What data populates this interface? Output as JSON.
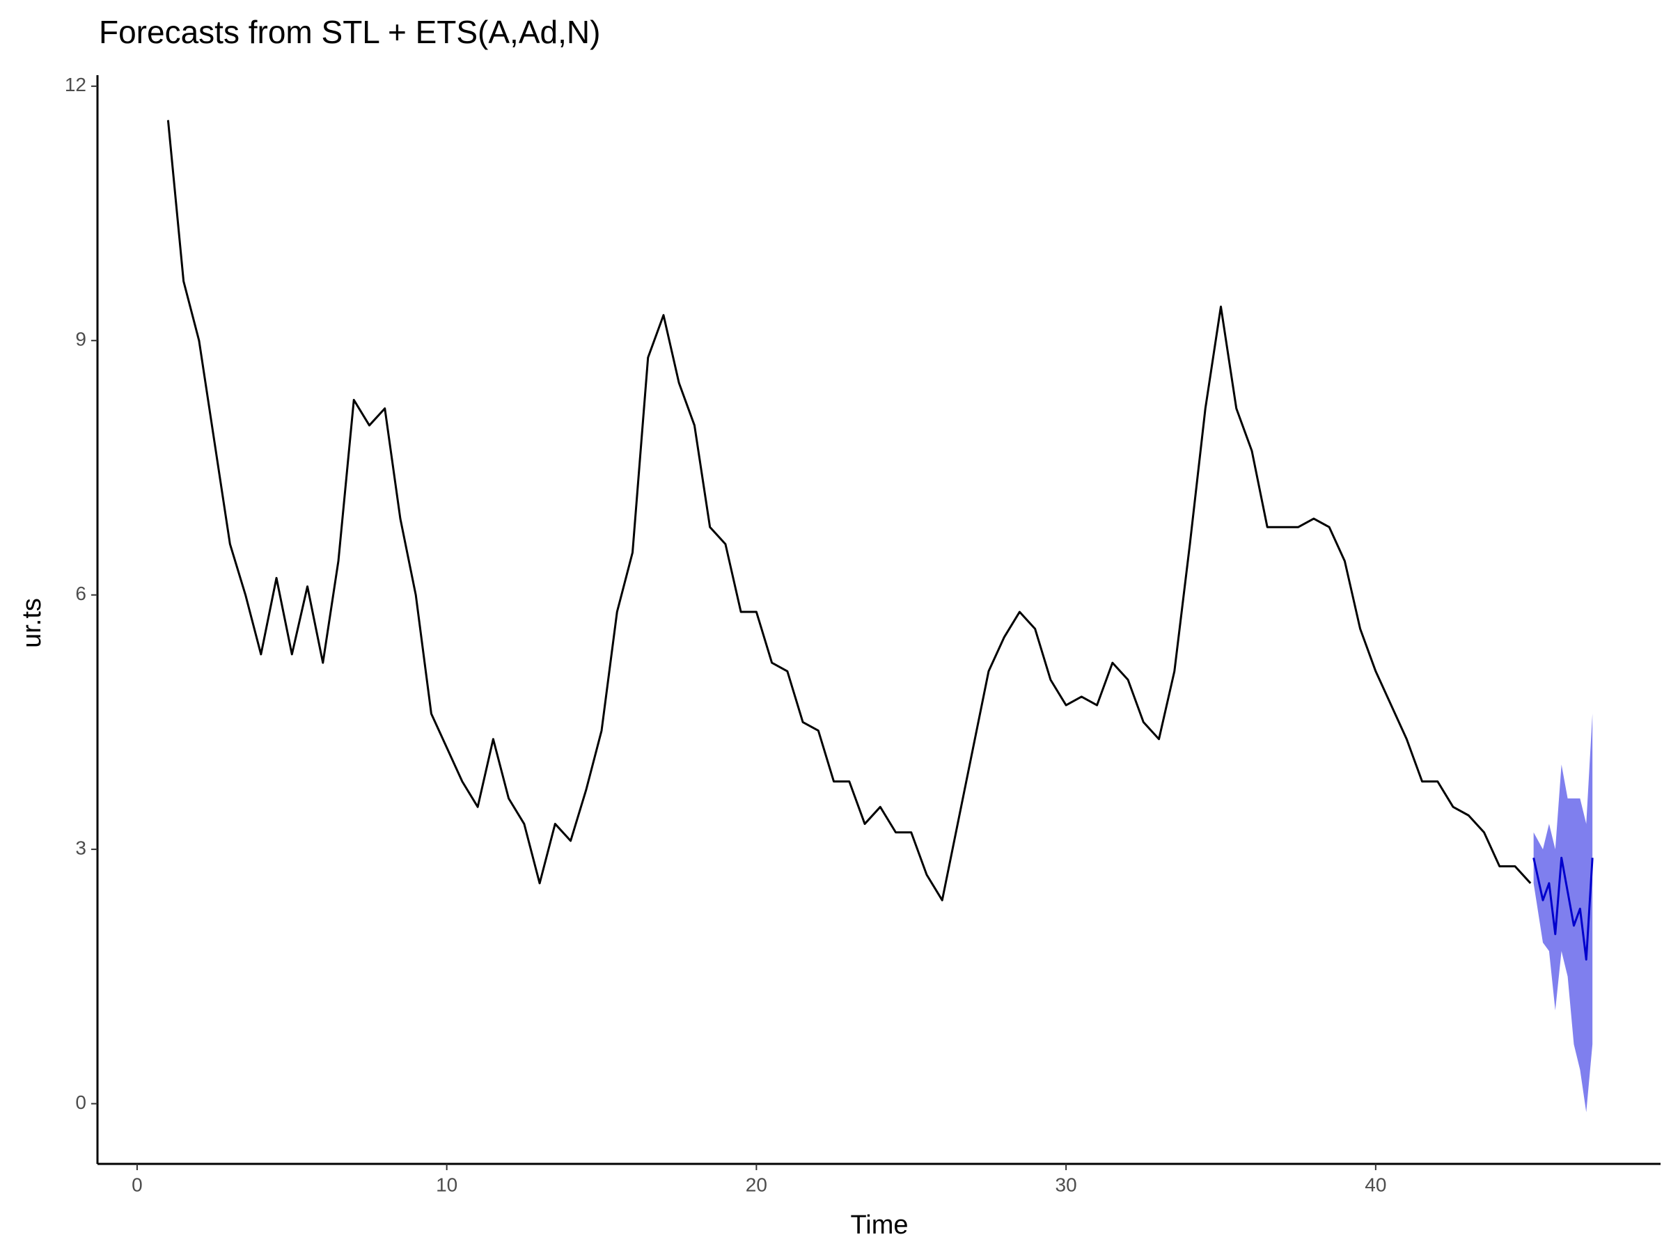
{
  "chart_data": {
    "type": "line",
    "title": "Forecasts from STL +  ETS(A,Ad,N)",
    "x_label": "Time",
    "y_label": "ur.ts",
    "xlim": [
      -1.28,
      49.2
    ],
    "ylim": [
      -0.71,
      12.13
    ],
    "xticks": [
      0,
      10,
      20,
      30,
      40
    ],
    "yticks": [
      0,
      3,
      6,
      9,
      12
    ],
    "grid": false,
    "series": [
      {
        "color": "#000000",
        "x": [
          1,
          1.5,
          2,
          2.5,
          3,
          3.5,
          4,
          4.5,
          5,
          5.5,
          6,
          6.5,
          7,
          7.5,
          8,
          8.5,
          9,
          9.5,
          10,
          10.5,
          11,
          11.5,
          12,
          12.5,
          13,
          13.5,
          14,
          14.5,
          15,
          15.5,
          16,
          16.5,
          17,
          17.5,
          18,
          18.5,
          19,
          19.5,
          20,
          20.5,
          21,
          21.5,
          22,
          22.5,
          23,
          23.5,
          24,
          24.5,
          25,
          25.5,
          26,
          26.5,
          27,
          27.5,
          28,
          28.5,
          29,
          29.5,
          30,
          30.5,
          31,
          31.5,
          32,
          32.5,
          33,
          33.5,
          34,
          34.5,
          35,
          35.5,
          36,
          36.5,
          37,
          37.5,
          38,
          38.5,
          39,
          39.5,
          40,
          40.5,
          41,
          41.5,
          42,
          42.5,
          43,
          43.5,
          44,
          44.5,
          45
        ],
        "values": [
          11.6,
          9.7,
          9.0,
          7.8,
          6.6,
          6.0,
          5.3,
          6.2,
          5.3,
          6.1,
          5.2,
          6.4,
          8.3,
          8.0,
          8.2,
          6.9,
          6.0,
          4.6,
          4.2,
          3.8,
          3.5,
          4.3,
          3.6,
          3.3,
          2.6,
          3.3,
          3.1,
          3.7,
          4.4,
          5.8,
          6.5,
          8.8,
          9.3,
          8.5,
          8.0,
          6.8,
          6.6,
          5.8,
          5.8,
          5.2,
          5.1,
          4.5,
          4.4,
          3.8,
          3.8,
          3.3,
          3.5,
          3.2,
          3.2,
          2.7,
          2.4,
          3.3,
          4.2,
          5.1,
          5.5,
          5.8,
          5.6,
          5.0,
          4.7,
          4.8,
          4.7,
          5.2,
          5.0,
          4.5,
          4.3,
          5.1,
          6.6,
          8.2,
          9.4,
          8.2,
          7.7,
          6.8,
          6.8,
          6.8,
          6.9,
          6.8,
          6.4,
          5.6,
          5.1,
          4.7,
          4.3,
          3.8,
          3.8,
          3.5,
          3.4,
          3.2,
          2.8,
          2.8,
          2.6
        ]
      },
      {
        "color": "#0000cd",
        "band_color": "#7f7fee",
        "x": [
          45.1,
          45.4,
          45.6,
          45.8,
          46,
          46.2,
          46.4,
          46.6,
          46.8,
          47
        ],
        "values": [
          2.9,
          2.4,
          2.6,
          2.0,
          2.9,
          2.5,
          2.1,
          2.3,
          1.7,
          2.9
        ],
        "lower": [
          2.6,
          1.9,
          1.8,
          1.1,
          1.8,
          1.5,
          0.7,
          0.4,
          -0.1,
          0.7
        ],
        "upper": [
          3.2,
          3.0,
          3.3,
          3.0,
          4.0,
          3.6,
          3.6,
          3.6,
          3.3,
          4.6
        ]
      }
    ]
  }
}
